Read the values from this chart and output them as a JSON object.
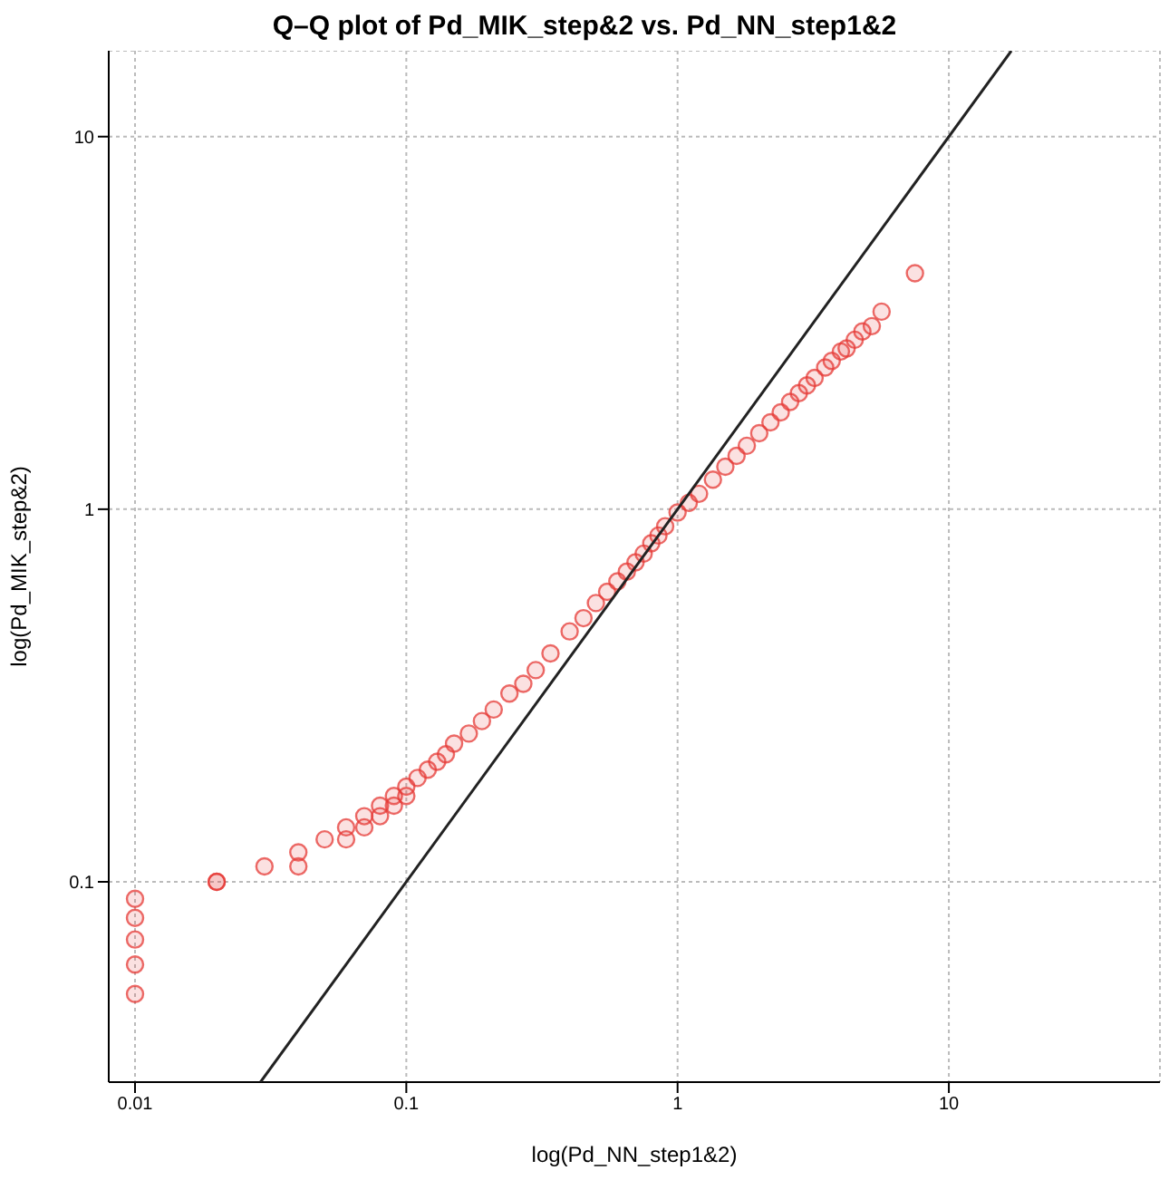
{
  "chart_data": {
    "type": "scatter",
    "title": "Q–Q plot of Pd_MIK_step&2 vs. Pd_NN_step1&2",
    "xlabel": "log(Pd_NN_step1&2)",
    "ylabel": "log(Pd_MIK_step&2)",
    "log": "xy",
    "grid": true,
    "xlim": [
      0.008,
      60
    ],
    "ylim": [
      0.029,
      17
    ],
    "xticks": [
      0.01,
      0.1,
      1,
      10
    ],
    "yticks": [
      0.1,
      1,
      10
    ],
    "series": [
      {
        "type": "scatter",
        "marker": "circle",
        "color": "#e53935",
        "x": [
          0.01,
          0.01,
          0.01,
          0.01,
          0.01,
          0.02,
          0.02,
          0.03,
          0.04,
          0.04,
          0.05,
          0.06,
          0.06,
          0.07,
          0.07,
          0.08,
          0.08,
          0.09,
          0.09,
          0.1,
          0.1,
          0.11,
          0.12,
          0.13,
          0.14,
          0.15,
          0.17,
          0.19,
          0.21,
          0.24,
          0.27,
          0.3,
          0.34,
          0.4,
          0.45,
          0.5,
          0.55,
          0.6,
          0.65,
          0.7,
          0.75,
          0.8,
          0.85,
          0.9,
          1.0,
          1.1,
          1.2,
          1.35,
          1.5,
          1.65,
          1.8,
          2.0,
          2.2,
          2.4,
          2.6,
          2.8,
          3.0,
          3.2,
          3.5,
          3.7,
          4.0,
          4.2,
          4.5,
          4.8,
          5.2,
          5.65,
          7.5
        ],
        "values": [
          0.05,
          0.06,
          0.07,
          0.08,
          0.09,
          0.1,
          0.1,
          0.11,
          0.11,
          0.12,
          0.13,
          0.13,
          0.14,
          0.14,
          0.15,
          0.15,
          0.16,
          0.16,
          0.17,
          0.17,
          0.18,
          0.19,
          0.2,
          0.21,
          0.22,
          0.235,
          0.25,
          0.27,
          0.29,
          0.32,
          0.34,
          0.37,
          0.41,
          0.47,
          0.51,
          0.56,
          0.6,
          0.64,
          0.68,
          0.72,
          0.76,
          0.81,
          0.85,
          0.9,
          0.98,
          1.04,
          1.1,
          1.2,
          1.3,
          1.39,
          1.48,
          1.6,
          1.71,
          1.82,
          1.94,
          2.05,
          2.15,
          2.25,
          2.4,
          2.5,
          2.65,
          2.7,
          2.85,
          3.0,
          3.1,
          3.39,
          4.3
        ]
      },
      {
        "type": "line",
        "marker": "none",
        "color": "#222222",
        "x": [
          0.029,
          17
        ],
        "values": [
          0.029,
          17
        ]
      }
    ]
  }
}
